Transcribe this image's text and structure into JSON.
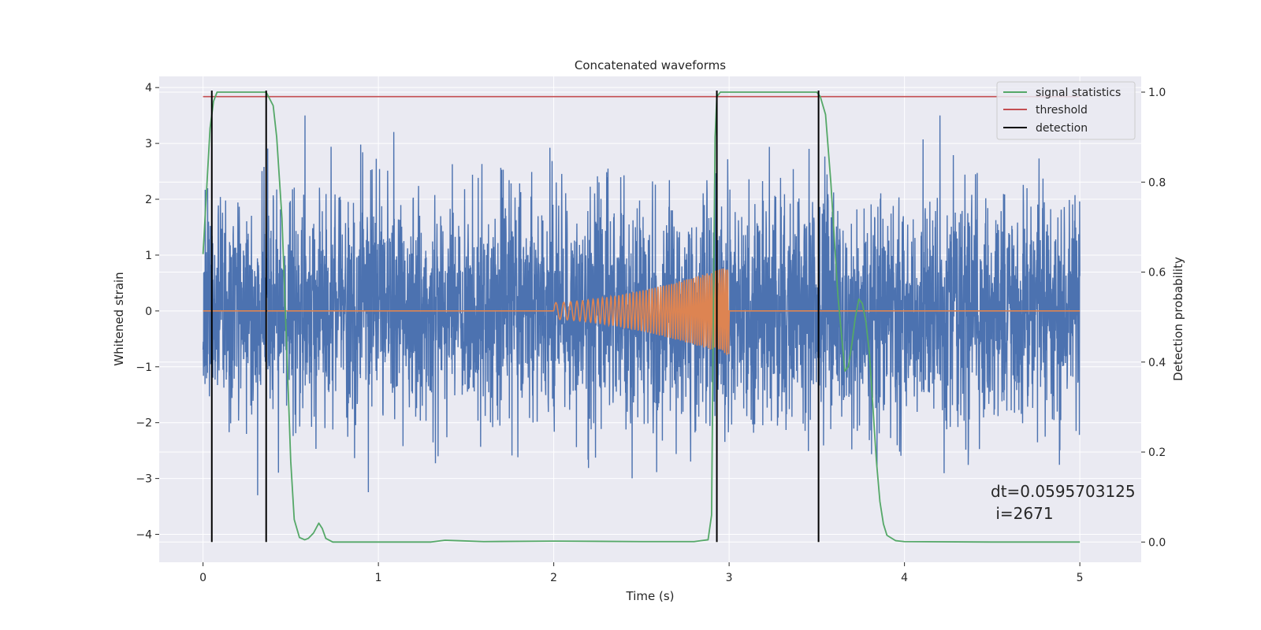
{
  "chart_data": {
    "type": "line",
    "title": "Concatenated waveforms",
    "xlabel": "Time (s)",
    "ylabel": "Whitened strain",
    "y2label": "Detection probability",
    "xlim": [
      -0.25,
      5.35
    ],
    "ylim": [
      -4.5,
      4.2
    ],
    "y2lim": [
      -0.045,
      1.035
    ],
    "x_ticks": [
      0,
      1,
      2,
      3,
      4,
      5
    ],
    "y_ticks": [
      -4,
      -3,
      -2,
      -1,
      0,
      1,
      2,
      3,
      4
    ],
    "y2_ticks": [
      0.0,
      0.2,
      0.4,
      0.6,
      0.8,
      1.0
    ],
    "grid": true,
    "legend_position": "top-right",
    "colors": {
      "background": "#eaeaf2",
      "grid": "#ffffff",
      "noise": "#4c72b0",
      "injection": "#dd8452",
      "signal_statistics": "#55a868",
      "threshold": "#c44e52",
      "detection": "#000000"
    },
    "series": [
      {
        "kind": "noise",
        "axis": "left",
        "x_range": [
          0,
          5
        ],
        "description_values": {
          "typical_amplitude": 1.0,
          "max": 3.5,
          "min": -3.3
        }
      },
      {
        "kind": "injection",
        "axis": "left",
        "x_range": [
          0,
          5
        ],
        "chirp": {
          "start": 2.0,
          "end": 3.0,
          "start_amplitude": 0.15,
          "end_amplitude": 0.8,
          "start_frequency": 20,
          "end_frequency": 90
        }
      },
      {
        "name": "signal statistics",
        "axis": "right",
        "x": [
          0.0,
          0.02,
          0.04,
          0.06,
          0.08,
          0.1,
          0.2,
          0.3,
          0.36,
          0.4,
          0.42,
          0.45,
          0.48,
          0.5,
          0.52,
          0.55,
          0.58,
          0.6,
          0.63,
          0.66,
          0.68,
          0.7,
          0.74,
          0.8,
          1.0,
          1.3,
          1.38,
          1.45,
          1.6,
          2.0,
          2.5,
          2.8,
          2.88,
          2.9,
          2.91,
          2.92,
          2.93,
          2.95,
          3.0,
          3.2,
          3.5,
          3.52,
          3.55,
          3.58,
          3.62,
          3.66,
          3.68,
          3.7,
          3.72,
          3.74,
          3.76,
          3.78,
          3.8,
          3.82,
          3.84,
          3.86,
          3.88,
          3.9,
          3.95,
          4.0,
          4.5,
          5.0
        ],
        "y": [
          0.64,
          0.78,
          0.92,
          0.98,
          1.0,
          1.0,
          1.0,
          1.0,
          1.0,
          0.97,
          0.9,
          0.72,
          0.4,
          0.18,
          0.05,
          0.01,
          0.005,
          0.008,
          0.02,
          0.042,
          0.03,
          0.008,
          0.0,
          0.0,
          0.0,
          0.0,
          0.004,
          0.003,
          0.001,
          0.002,
          0.001,
          0.001,
          0.005,
          0.06,
          0.5,
          0.9,
          0.99,
          1.0,
          1.0,
          1.0,
          1.0,
          0.99,
          0.95,
          0.8,
          0.55,
          0.38,
          0.39,
          0.44,
          0.5,
          0.54,
          0.53,
          0.49,
          0.42,
          0.3,
          0.18,
          0.09,
          0.04,
          0.015,
          0.003,
          0.001,
          0.0,
          0.0
        ]
      },
      {
        "name": "threshold",
        "axis": "right",
        "x": [
          0,
          5
        ],
        "y": [
          0.99,
          0.99
        ]
      },
      {
        "name": "detection",
        "axis": "right",
        "x": [
          0.05,
          0.36,
          2.93,
          3.51
        ],
        "y_range": [
          0.0,
          1.0
        ]
      }
    ],
    "legend": {
      "signal": "signal statistics",
      "threshold": "threshold",
      "detection": "detection"
    },
    "annotation": {
      "line1": "dt=0.0595703125",
      "line2": " i=2671"
    }
  }
}
